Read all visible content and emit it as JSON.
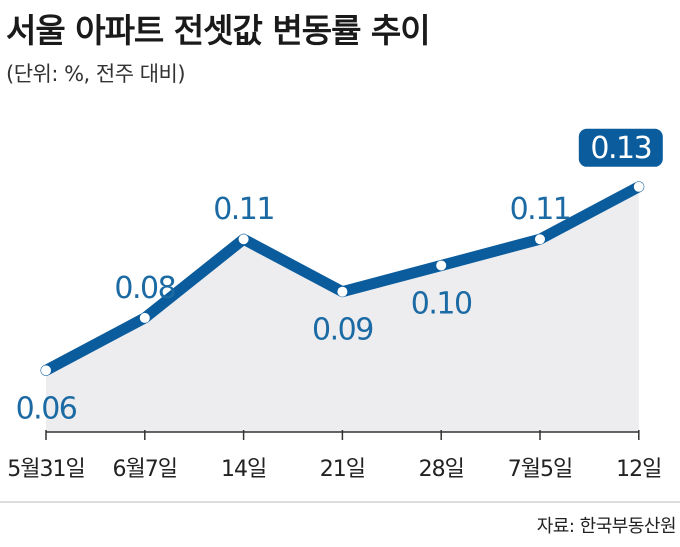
{
  "title": "서울 아파트 전셋값 변동률 추이",
  "subtitle": "(단위: %, 전주 대비)",
  "source": "자료: 한국부동산원",
  "colors": {
    "line": "#0b5c9c",
    "area": "#ededf0",
    "label": "#1b6aa3",
    "highlight_bg": "#0b5c9c",
    "highlight_text": "#ffffff"
  },
  "chart_data": {
    "type": "area",
    "title": "서울 아파트 전셋값 변동률 추이",
    "subtitle": "(단위: %, 전주 대비)",
    "categories": [
      "5월31일",
      "6월7일",
      "14일",
      "21일",
      "28일",
      "7월5일",
      "12일"
    ],
    "series": [
      {
        "values": [
          0.06,
          0.08,
          0.11,
          0.09,
          0.1,
          0.11,
          0.13
        ],
        "labels": [
          "0.06",
          "0.08",
          "0.11",
          "0.09",
          "0.10",
          "0.11",
          "0.13"
        ]
      }
    ],
    "label_position": [
      "below",
      "above",
      "above",
      "below",
      "below",
      "above",
      "above"
    ],
    "highlight_last": true,
    "ylim": [
      0.0365,
      0.165
    ],
    "grid": false,
    "legend": "none"
  }
}
